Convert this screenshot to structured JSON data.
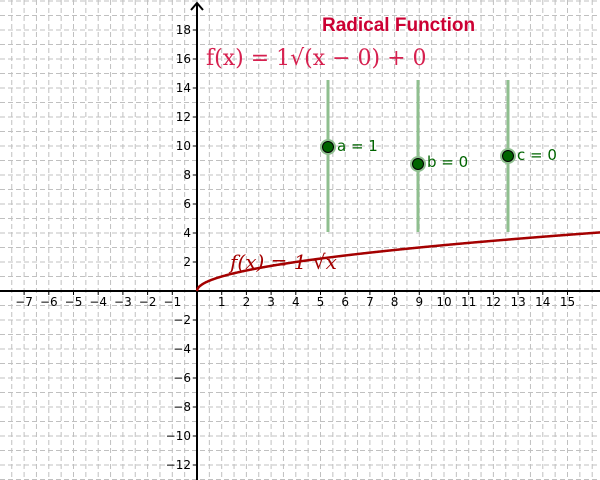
{
  "title": "Radical Function",
  "formula": "f(x) = 1√(x − 0) + 0",
  "function_label": "f(x) = 1 √x",
  "axes": {
    "x_ticks": [
      -7,
      -6,
      -5,
      -4,
      -3,
      -2,
      -1,
      1,
      2,
      3,
      4,
      5,
      6,
      7,
      8,
      9,
      10,
      11,
      12,
      13,
      14,
      15
    ],
    "y_ticks": [
      -12,
      -10,
      -8,
      -6,
      -4,
      -2,
      2,
      4,
      6,
      8,
      10,
      12,
      14,
      16,
      18
    ]
  },
  "sliders": [
    {
      "name": "a",
      "label": "a = 1",
      "value": 1
    },
    {
      "name": "b",
      "label": "b = 0",
      "value": 0
    },
    {
      "name": "c",
      "label": "c = 0",
      "value": 0
    }
  ],
  "colors": {
    "title": "#cc0033",
    "curve": "#a40000",
    "slider": "#006400",
    "grid": "#c0c0c0"
  }
}
